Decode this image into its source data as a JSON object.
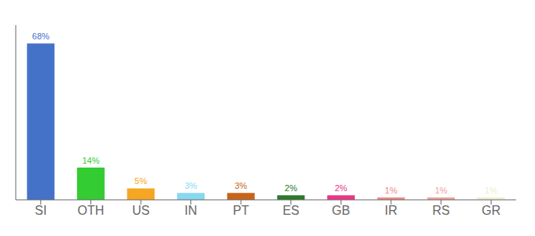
{
  "chart_data": {
    "type": "bar",
    "categories": [
      "SI",
      "OTH",
      "US",
      "IN",
      "PT",
      "ES",
      "GB",
      "IR",
      "RS",
      "GR"
    ],
    "values": [
      68,
      14,
      5,
      3,
      3,
      2,
      2,
      1,
      1,
      1
    ],
    "value_labels": [
      "68%",
      "14%",
      "5%",
      "3%",
      "3%",
      "2%",
      "2%",
      "1%",
      "1%",
      "1%"
    ],
    "colors": [
      "#4472c8",
      "#33cc33",
      "#f5a623",
      "#88d8f0",
      "#c8641a",
      "#2a7a2a",
      "#ee3388",
      "#f08888",
      "#f0a0a0",
      "#f0eecc"
    ],
    "ylim": [
      0,
      76
    ],
    "data_labels": true,
    "tick_labels": "x",
    "grid": false
  }
}
